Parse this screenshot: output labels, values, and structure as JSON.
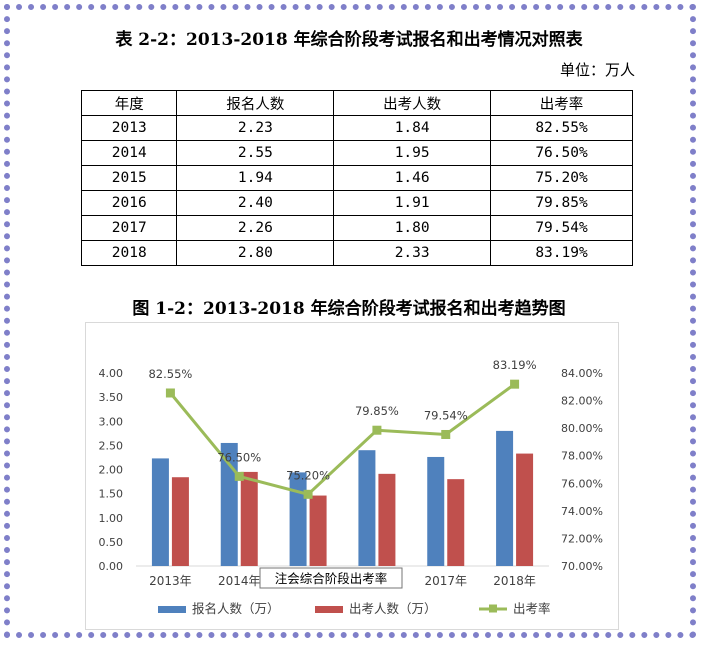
{
  "table": {
    "title": "表 2-2：2013-2018 年综合阶段考试报名和出考情况对照表",
    "unit": "单位：万人",
    "headers": [
      "年度",
      "报名人数",
      "出考人数",
      "出考率"
    ],
    "rows": [
      [
        "2013",
        "2.23",
        "1.84",
        "82.55%"
      ],
      [
        "2014",
        "2.55",
        "1.95",
        "76.50%"
      ],
      [
        "2015",
        "1.94",
        "1.46",
        "75.20%"
      ],
      [
        "2016",
        "2.40",
        "1.91",
        "79.85%"
      ],
      [
        "2017",
        "2.26",
        "1.80",
        "79.54%"
      ],
      [
        "2018",
        "2.80",
        "2.33",
        "83.19%"
      ]
    ]
  },
  "chart_title": "图 1-2：2013-2018 年综合阶段考试报名和出考趋势图",
  "tooltip": "注会综合阶段出考率",
  "colors": {
    "bar1": "#4f81bd",
    "bar2": "#c0504d",
    "line": "#9bbb59",
    "frame": "#7f7fc9"
  },
  "chart_data": {
    "type": "bar",
    "categories": [
      "2013年",
      "2014年",
      "2015年",
      "2016年",
      "2017年",
      "2018年"
    ],
    "series": [
      {
        "name": "报名人数（万）",
        "type": "bar",
        "axis": "left",
        "values": [
          2.23,
          2.55,
          1.94,
          2.4,
          2.26,
          2.8
        ]
      },
      {
        "name": "出考人数（万）",
        "type": "bar",
        "axis": "left",
        "values": [
          1.84,
          1.95,
          1.46,
          1.91,
          1.8,
          2.33
        ]
      },
      {
        "name": "出考率",
        "type": "line",
        "axis": "right",
        "values": [
          82.55,
          76.5,
          75.2,
          79.85,
          79.54,
          83.19
        ],
        "labels": [
          "82.55%",
          "76.50%",
          "75.20%",
          "79.85%",
          "79.54%",
          "83.19%"
        ]
      }
    ],
    "ylim": [
      0,
      4
    ],
    "yticks": [
      "0.00",
      "0.50",
      "1.00",
      "1.50",
      "2.00",
      "2.50",
      "3.00",
      "3.50",
      "4.00"
    ],
    "y2lim": [
      70,
      84
    ],
    "y2ticks": [
      "70.00%",
      "72.00%",
      "74.00%",
      "76.00%",
      "78.00%",
      "80.00%",
      "82.00%",
      "84.00%"
    ],
    "legend": "bottom",
    "grid": false
  }
}
